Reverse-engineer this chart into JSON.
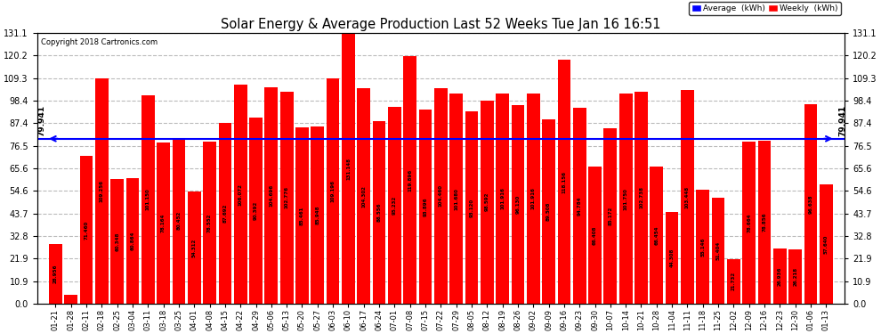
{
  "title": "Solar Energy & Average Production Last 52 Weeks Tue Jan 16 16:51",
  "copyright": "Copyright 2018 Cartronics.com",
  "average_line": 79.941,
  "bar_color": "#FF0000",
  "average_line_color": "#0000FF",
  "background_color": "#FFFFFF",
  "grid_color": "#AAAAAA",
  "ylim": [
    0.0,
    131.1
  ],
  "yticks": [
    0.0,
    10.9,
    21.9,
    32.8,
    43.7,
    54.6,
    65.6,
    76.5,
    87.4,
    98.4,
    109.3,
    120.2,
    131.1
  ],
  "categories": [
    "01-21",
    "01-28",
    "02-11",
    "02-18",
    "02-25",
    "03-04",
    "03-11",
    "03-18",
    "03-25",
    "04-01",
    "04-08",
    "04-15",
    "04-22",
    "04-29",
    "05-06",
    "05-13",
    "05-20",
    "05-27",
    "06-03",
    "06-10",
    "06-17",
    "06-24",
    "07-01",
    "07-08",
    "07-15",
    "07-22",
    "07-29",
    "08-05",
    "08-12",
    "08-19",
    "08-26",
    "09-02",
    "09-09",
    "09-16",
    "09-23",
    "09-30",
    "10-07",
    "10-14",
    "10-21",
    "10-28",
    "11-04",
    "11-11",
    "11-18",
    "11-25",
    "12-02",
    "12-09",
    "12-16",
    "12-23",
    "12-30",
    "01-06",
    "01-13"
  ],
  "values": [
    28.956,
    4.312,
    71.46,
    109.256,
    60.348,
    60.864,
    101.15,
    78.164,
    80.452,
    54.312,
    78.552,
    87.692,
    106.072,
    90.392,
    104.696,
    102.776,
    85.461,
    85.948,
    109.196,
    131.148,
    104.302,
    88.556,
    95.232,
    119.896,
    93.896,
    104.46,
    101.68,
    93.12,
    98.592,
    101.916,
    96.13,
    101.916,
    89.508,
    118.156,
    94.784,
    66.408,
    85.172,
    101.75,
    102.738,
    66.454,
    44.308,
    103.448,
    55.146,
    51.404,
    21.732,
    78.664,
    78.856,
    26.936,
    26.218,
    96.638,
    57.64
  ],
  "value_labels": [
    "28.956",
    "4.312",
    "71.460",
    "109.256",
    "60.348",
    "60.864",
    "101.150",
    "78.164",
    "80.452",
    "54.312",
    "78.552",
    "87.692",
    "106.072",
    "90.392",
    "104.696",
    "102.776",
    "85.461",
    "85.948",
    "109.196",
    "131.148",
    "104.302",
    "88.556",
    "95.232",
    "119.896",
    "93.896",
    "104.460",
    "101.680",
    "93.120",
    "98.592",
    "101.916",
    "96.130",
    "101.916",
    "89.508",
    "118.156",
    "94.784",
    "66.408",
    "85.172",
    "101.750",
    "102.738",
    "66.454",
    "44.308",
    "103.448",
    "55.146",
    "51.404",
    "21.732",
    "78.664",
    "78.856",
    "26.936",
    "26.218",
    "96.638",
    "57.640"
  ]
}
